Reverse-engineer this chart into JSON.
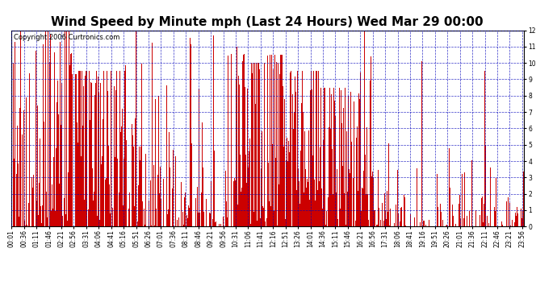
{
  "title": "Wind Speed by Minute mph (Last 24 Hours) Wed Mar 29 00:00",
  "copyright": "Copyright 2006 Curtronics.com",
  "ylim": [
    0.0,
    12.0
  ],
  "yticks": [
    0.0,
    1.0,
    2.0,
    3.0,
    4.0,
    5.0,
    6.0,
    7.0,
    8.0,
    9.0,
    10.0,
    11.0,
    12.0
  ],
  "bar_color": "#cc0000",
  "bg_color": "#ffffff",
  "grid_color": "#0000bb",
  "title_fontsize": 11,
  "copyright_fontsize": 6,
  "tick_fontsize": 5.5,
  "total_minutes": 1440,
  "x_tick_start": 1,
  "x_tick_step": 35,
  "x_tick_labels": [
    "00:01",
    "00:36",
    "01:11",
    "01:46",
    "02:21",
    "02:56",
    "03:31",
    "04:06",
    "04:41",
    "05:16",
    "05:51",
    "06:26",
    "07:01",
    "07:36",
    "08:11",
    "08:46",
    "09:21",
    "09:56",
    "10:31",
    "11:06",
    "11:41",
    "12:16",
    "12:51",
    "13:26",
    "14:01",
    "14:36",
    "15:11",
    "15:46",
    "16:21",
    "16:56",
    "17:31",
    "18:06",
    "18:41",
    "19:16",
    "19:51",
    "20:26",
    "21:01",
    "21:36",
    "22:11",
    "22:46",
    "23:21",
    "23:56"
  ]
}
